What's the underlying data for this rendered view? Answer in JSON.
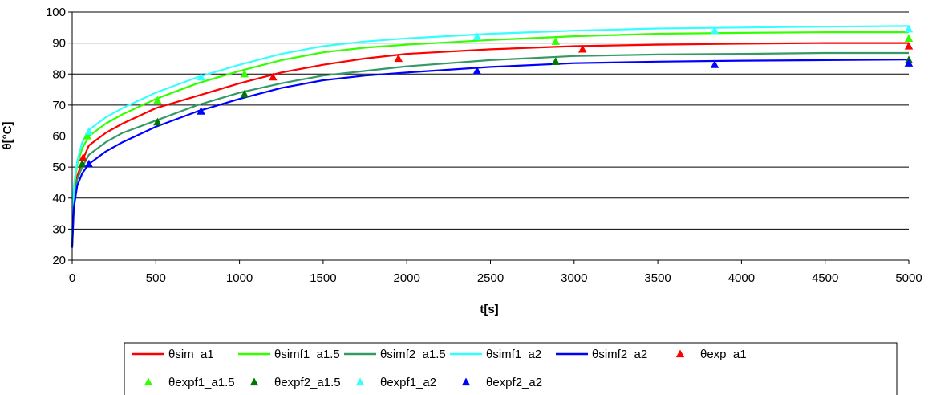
{
  "chart_data": {
    "type": "line",
    "xlabel": "t[s]",
    "ylabel": "θ[°C]",
    "xlim": [
      0,
      5000
    ],
    "ylim": [
      20,
      100
    ],
    "xticks": [
      0,
      500,
      1000,
      1500,
      2000,
      2500,
      3000,
      3500,
      4000,
      4500,
      5000
    ],
    "yticks": [
      20,
      30,
      40,
      50,
      60,
      70,
      80,
      90,
      100
    ],
    "grid": "horizontal",
    "legend_position": "bottom",
    "series": [
      {
        "name": "θsim_a1",
        "kind": "line",
        "color": "#ff0000",
        "x": [
          0,
          10,
          30,
          60,
          100,
          200,
          300,
          500,
          750,
          1000,
          1250,
          1500,
          1750,
          2000,
          2500,
          3000,
          3500,
          4000,
          4500,
          5000
        ],
        "y": [
          25,
          40,
          47,
          52,
          57,
          61,
          64,
          69,
          73,
          77,
          80.5,
          83,
          85,
          86.5,
          88,
          89,
          89.5,
          89.8,
          90,
          90
        ]
      },
      {
        "name": "θsimf1_a1.5",
        "kind": "line",
        "color": "#33ff00",
        "x": [
          0,
          10,
          30,
          60,
          100,
          200,
          300,
          500,
          750,
          1000,
          1250,
          1500,
          1750,
          2000,
          2500,
          3000,
          3500,
          4000,
          4500,
          5000
        ],
        "y": [
          27,
          43,
          51,
          56,
          60,
          64,
          67,
          72,
          77,
          81,
          84.5,
          87,
          88.5,
          89.5,
          91,
          92.2,
          93,
          93.3,
          93.5,
          93.5
        ]
      },
      {
        "name": "θsimf2_a1.5",
        "kind": "line",
        "color": "#339966",
        "x": [
          0,
          10,
          30,
          60,
          100,
          200,
          300,
          500,
          750,
          1000,
          1250,
          1500,
          1750,
          2000,
          2500,
          3000,
          3500,
          4000,
          4500,
          5000
        ],
        "y": [
          25,
          39,
          46,
          50,
          54,
          58,
          61,
          65,
          70,
          74,
          77,
          79.5,
          81,
          82.5,
          84.5,
          85.8,
          86.3,
          86.5,
          86.8,
          86.8
        ]
      },
      {
        "name": "θsimf1_a2",
        "kind": "line",
        "color": "#33ffff",
        "x": [
          0,
          10,
          30,
          60,
          100,
          200,
          300,
          500,
          750,
          1000,
          1250,
          1500,
          1750,
          2000,
          2500,
          3000,
          3500,
          4000,
          4500,
          5000
        ],
        "y": [
          28,
          44,
          52,
          58,
          62,
          66,
          69,
          74,
          79,
          83,
          86.5,
          89,
          90.5,
          91.5,
          93,
          94,
          94.7,
          95,
          95.3,
          95.5
        ]
      },
      {
        "name": "θsimf2_a2",
        "kind": "line",
        "color": "#0000ff",
        "x": [
          0,
          10,
          30,
          60,
          100,
          200,
          300,
          500,
          750,
          1000,
          1250,
          1500,
          1750,
          2000,
          2500,
          3000,
          3500,
          4000,
          4500,
          5000
        ],
        "y": [
          24,
          37,
          44,
          48,
          51,
          55,
          58,
          63,
          68,
          72,
          75.5,
          78,
          79.5,
          80.5,
          82.3,
          83.5,
          84,
          84.3,
          84.5,
          84.7
        ]
      },
      {
        "name": "θexp_a1",
        "kind": "marker",
        "color": "#ff0000",
        "x": [
          65,
          1200,
          1950,
          3050,
          5000
        ],
        "y": [
          53,
          79,
          85,
          88,
          89
        ]
      },
      {
        "name": "θexpf1_a1.5",
        "kind": "marker",
        "color": "#33ff00",
        "x": [
          90,
          510,
          1030,
          2890,
          5000
        ],
        "y": [
          60,
          71.5,
          80,
          90.5,
          91.5
        ]
      },
      {
        "name": "θexpf2_a1.5",
        "kind": "marker",
        "color": "#007700",
        "x": [
          60,
          510,
          1030,
          2890,
          5000
        ],
        "y": [
          51,
          64.5,
          73.5,
          84,
          84.5
        ]
      },
      {
        "name": "θexpf1_a2",
        "kind": "marker",
        "color": "#33ffff",
        "x": [
          100,
          770,
          2420,
          3840,
          5000
        ],
        "y": [
          61.5,
          79,
          92,
          94,
          94.5
        ]
      },
      {
        "name": "θexpf2_a2",
        "kind": "marker",
        "color": "#0000ff",
        "x": [
          100,
          770,
          2420,
          3840,
          5000
        ],
        "y": [
          51,
          68,
          81,
          83,
          83.5
        ]
      }
    ]
  }
}
